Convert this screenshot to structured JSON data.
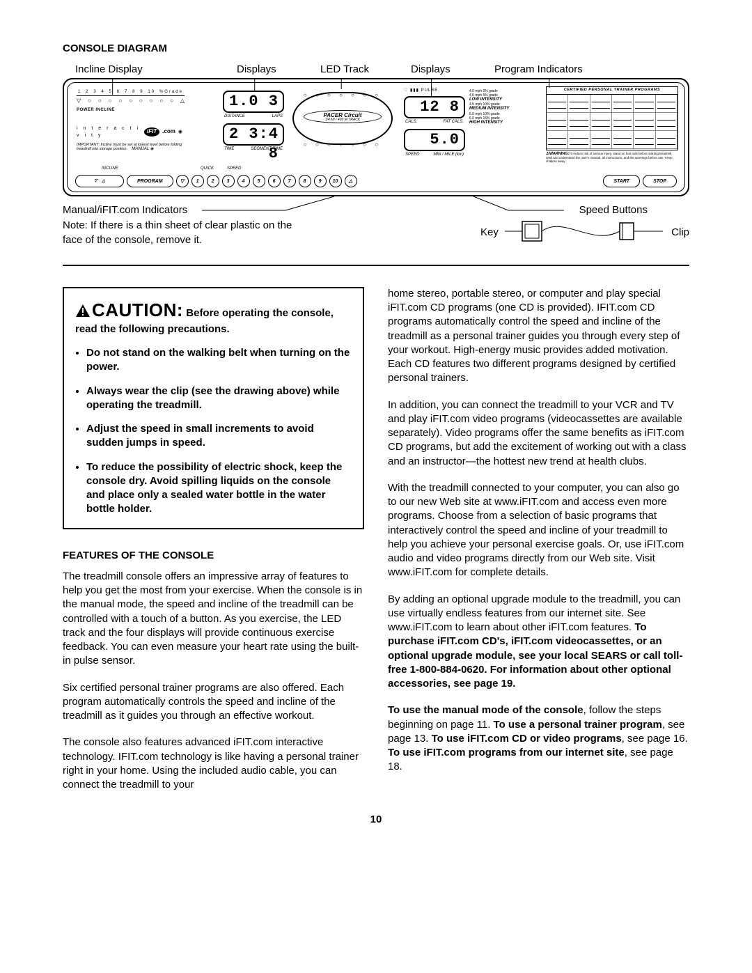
{
  "section_title": "CONSOLE DIAGRAM",
  "top_labels": {
    "incline": "Incline Display",
    "displays1": "Displays",
    "led_track": "LED Track",
    "displays2": "Displays",
    "program": "Program Indicators"
  },
  "console": {
    "incline_nums": [
      "1",
      "2",
      "3",
      "4",
      "5",
      "6",
      "7",
      "8",
      "9",
      "10",
      "%Grade"
    ],
    "shapes": [
      "▽",
      "○",
      "○",
      "○",
      "○",
      "○",
      "○",
      "○",
      "○",
      "○",
      "△"
    ],
    "power": "POWER INCLINE",
    "interact": "i n t e r a c t i v i t y",
    "ifit": "iFIT",
    "com": ".com",
    "important": "IMPORTANT: Incline must be set at lowest level before folding treadmill into storage position.",
    "manual": "MANUAL",
    "disp1": "1.0 3",
    "disp1_sub1": "DISTANCE",
    "disp1_sub2": "LAPS",
    "disp2": "2 3:4 8",
    "disp2_sub1": "TIME",
    "disp2_sub2": "SEGMENT TIME",
    "pulse": "♡ ▮▮▮ PULSE",
    "track_brand": "PACER Circuit",
    "track_sub": "1/4 MI / 400 M  TRACK",
    "disp3": "12 8",
    "disp3_sub1": "CALS.",
    "disp3_sub2": "FAT CALS.",
    "disp4": "5.0",
    "disp4_sub1": "SPEED",
    "disp4_sub2": "MIN / MILE (km)",
    "intensity_rows": [
      "4.0 mph 0% grade",
      "4.0 mph 5% grade",
      "4.5 mph 10% grade",
      "5.0 mph 10% grade",
      "6.0 mph 15% grade"
    ],
    "intensity_labels": [
      "LOW INTENSITY",
      "MEDIUM INTENSITY",
      "HIGH INTENSITY"
    ],
    "programs_title": "CERTIFIED PERSONAL TRAINER PROGRAMS",
    "warn_tiny_lead": "⚠WARNING:",
    "warn_tiny": "To reduce risk of serious injury, stand on foot rails before starting treadmill, read and understand the user's manual, all instructions, and the warnings before use. Keep children away.",
    "btn_incline": "INCLINE",
    "btn_program": "PROGRAM",
    "btn_quick": "QUICK",
    "btn_speed": "SPEED",
    "btn_numbers": [
      "1",
      "2",
      "3",
      "4",
      "5",
      "6",
      "7",
      "8",
      "9",
      "10"
    ],
    "btn_start": "START",
    "btn_stop": "STOP"
  },
  "bottom_labels": {
    "manual_ifit": "Manual/iFIT.com Indicators",
    "speed": "Speed Buttons",
    "key": "Key",
    "clip": "Clip"
  },
  "note": "Note: If there is a thin sheet of clear plastic on the face of the console, remove it.",
  "caution": {
    "lead": "CAUTION:",
    "tail": "Before operating the console, read the following precautions.",
    "bullets": [
      "Do not stand on the walking belt when turning on the power.",
      "Always wear the clip (see the drawing above) while operating the treadmill.",
      "Adjust the speed in small increments to avoid sudden jumps in speed.",
      "To reduce the possibility of electric shock, keep the console dry. Avoid spilling liquids on the console and place only a sealed water bottle in the water bottle holder."
    ]
  },
  "features_title": "FEATURES OF THE CONSOLE",
  "left_p1": "The treadmill console offers an impressive array of features to help you get the most from your exercise. When the console is in the manual mode, the speed and incline of the treadmill can be controlled with a touch of a button. As you exercise, the LED track and the four displays will provide continuous exercise feedback. You can even measure your heart rate using the built-in pulse sensor.",
  "left_p2": "Six certified personal trainer programs are also offered. Each program automatically controls the speed and incline of the treadmill as it guides you through an effective workout.",
  "left_p3": "The console also features advanced iFIT.com interactive technology. IFIT.com technology is like having a personal trainer right in your home. Using the included audio cable, you can connect the treadmill to your",
  "right_p1": "home stereo, portable stereo, or computer and play special iFIT.com CD programs (one CD is provided). IFIT.com CD programs automatically control the speed and incline of the treadmill as a personal trainer guides you through every step of your workout. High-energy music provides added motivation. Each CD features two different programs designed by certified personal trainers.",
  "right_p2": "In addition, you can connect the treadmill to your VCR and TV and play iFIT.com video programs (videocassettes are available separately). Video programs offer the same benefits as iFIT.com CD programs, but add the excitement of working out with a class and an instructor—the hottest new trend at health clubs.",
  "right_p3": "With the treadmill connected to your computer, you can also go to our new Web site at www.iFIT.com and access even more programs. Choose from a selection of basic programs that interactively control the speed and incline of your treadmill to help you achieve your personal exercise goals. Or, use iFIT.com audio and video programs directly from our Web site. Visit www.iFIT.com for complete details.",
  "right_p4a": "By adding an optional upgrade module to the treadmill, you can use virtually endless features from our internet site. See www.iFIT.com to learn about other iFIT.com features. ",
  "right_p4b": "To purchase iFIT.com CD's, iFIT.com videocassettes, or an optional upgrade module, see your local SEARS or call toll-free 1-800-884-0620. For information about other optional accessories, see page 19.",
  "right_p5a": "To use the manual mode of the console",
  "right_p5b": ", follow the steps beginning on page 11. ",
  "right_p5c": "To use a personal trainer program",
  "right_p5d": ", see page 13. ",
  "right_p5e": "To use iFIT.com CD or video programs",
  "right_p5f": ", see page 16. ",
  "right_p5g": "To use iFIT.com programs from our internet site",
  "right_p5h": ", see page 18.",
  "page": "10"
}
